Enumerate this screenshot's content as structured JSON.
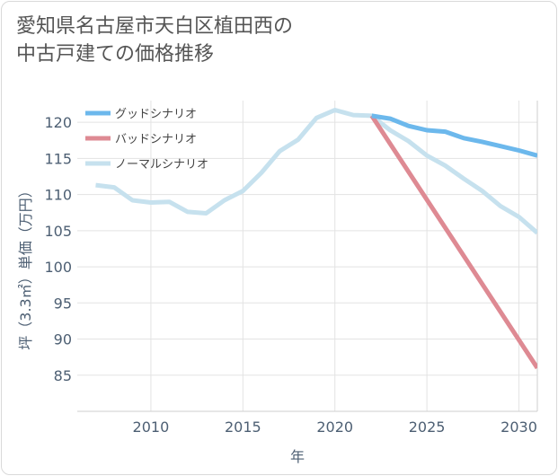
{
  "title_lines": [
    "愛知県名古屋市天白区植田西の",
    "中古戸建ての価格推移"
  ],
  "chart_data": {
    "type": "line",
    "title": "愛知県名古屋市天白区植田西の中古戸建ての価格推移",
    "xlabel": "年",
    "ylabel": "坪（3.3㎡）単価（万円）",
    "xlim": [
      2006,
      2031
    ],
    "ylim": [
      80,
      123
    ],
    "xticks": [
      2010,
      2015,
      2020,
      2025,
      2030
    ],
    "yticks": [
      85,
      90,
      95,
      100,
      105,
      110,
      115,
      120
    ],
    "grid": true,
    "legend_position": "top-left",
    "series": [
      {
        "name": "グッドシナリオ",
        "color": "#6cb8ec",
        "x": [
          2022,
          2023,
          2024,
          2025,
          2026,
          2027,
          2028,
          2029,
          2030,
          2031
        ],
        "y": [
          120.9,
          120.5,
          119.5,
          118.9,
          118.7,
          117.8,
          117.3,
          116.7,
          116.1,
          115.4
        ]
      },
      {
        "name": "バッドシナリオ",
        "color": "#de8a93",
        "x": [
          2022,
          2031
        ],
        "y": [
          120.9,
          86.0
        ]
      },
      {
        "name": "ノーマルシナリオ",
        "color": "#c6e1ee",
        "x": [
          2007,
          2008,
          2009,
          2010,
          2011,
          2012,
          2013,
          2014,
          2015,
          2016,
          2017,
          2018,
          2019,
          2020,
          2021,
          2022,
          2023,
          2024,
          2025,
          2026,
          2027,
          2028,
          2029,
          2030,
          2031
        ],
        "y": [
          111.3,
          111.0,
          109.2,
          108.9,
          109.0,
          107.6,
          107.4,
          109.2,
          110.5,
          113.0,
          116.0,
          117.6,
          120.6,
          121.7,
          121.0,
          120.9,
          118.9,
          117.4,
          115.4,
          114.0,
          112.2,
          110.5,
          108.4,
          106.9,
          104.7
        ]
      }
    ]
  }
}
